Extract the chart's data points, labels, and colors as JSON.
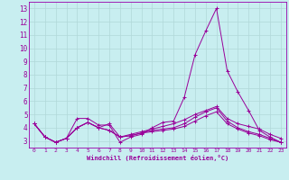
{
  "xlabel": "Windchill (Refroidissement éolien,°C)",
  "background_color": "#c8eef0",
  "grid_color": "#b0d8d8",
  "line_color": "#990099",
  "spine_color": "#9900aa",
  "xlim": [
    -0.5,
    23.5
  ],
  "ylim": [
    2.5,
    13.5
  ],
  "yticks": [
    3,
    4,
    5,
    6,
    7,
    8,
    9,
    10,
    11,
    12,
    13
  ],
  "xticks": [
    0,
    1,
    2,
    3,
    4,
    5,
    6,
    7,
    8,
    9,
    10,
    11,
    12,
    13,
    14,
    15,
    16,
    17,
    18,
    19,
    20,
    21,
    22,
    23
  ],
  "series": [
    [
      4.3,
      3.3,
      2.9,
      3.2,
      4.7,
      4.7,
      4.2,
      4.2,
      2.9,
      3.3,
      3.5,
      4.0,
      4.4,
      4.5,
      6.3,
      9.5,
      11.3,
      13.0,
      8.3,
      6.7,
      5.3,
      3.8,
      3.3,
      2.9
    ],
    [
      4.3,
      3.3,
      2.9,
      3.2,
      4.0,
      4.4,
      4.0,
      4.3,
      3.3,
      3.5,
      3.7,
      3.9,
      4.1,
      4.3,
      4.6,
      5.0,
      5.3,
      5.6,
      4.7,
      4.3,
      4.1,
      3.9,
      3.5,
      3.2
    ],
    [
      4.3,
      3.3,
      2.9,
      3.2,
      4.0,
      4.4,
      4.0,
      3.8,
      3.3,
      3.4,
      3.6,
      3.8,
      3.9,
      4.0,
      4.3,
      4.8,
      5.2,
      5.5,
      4.5,
      4.0,
      3.7,
      3.5,
      3.2,
      2.9
    ],
    [
      4.3,
      3.3,
      2.9,
      3.2,
      4.0,
      4.4,
      4.0,
      3.8,
      3.3,
      3.4,
      3.6,
      3.7,
      3.8,
      3.9,
      4.1,
      4.5,
      4.9,
      5.2,
      4.3,
      3.9,
      3.6,
      3.4,
      3.1,
      2.9
    ]
  ]
}
